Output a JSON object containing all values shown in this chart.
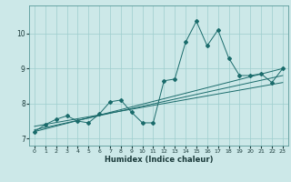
{
  "xlabel": "Humidex (Indice chaleur)",
  "xlim": [
    -0.5,
    23.5
  ],
  "ylim": [
    6.8,
    10.8
  ],
  "yticks": [
    7,
    8,
    9,
    10
  ],
  "xticks": [
    0,
    1,
    2,
    3,
    4,
    5,
    6,
    7,
    8,
    9,
    10,
    11,
    12,
    13,
    14,
    15,
    16,
    17,
    18,
    19,
    20,
    21,
    22,
    23
  ],
  "background_color": "#cce8e8",
  "grid_color": "#9ecece",
  "line_color": "#1a6b6b",
  "main_x": [
    0,
    1,
    2,
    3,
    4,
    5,
    6,
    7,
    8,
    9,
    10,
    11,
    12,
    13,
    14,
    15,
    16,
    17,
    18,
    19,
    20,
    21,
    22,
    23
  ],
  "main_y": [
    7.2,
    7.4,
    7.55,
    7.65,
    7.5,
    7.45,
    7.7,
    8.05,
    8.1,
    7.75,
    7.45,
    7.45,
    8.65,
    8.7,
    9.75,
    10.35,
    9.65,
    10.1,
    9.3,
    8.8,
    8.8,
    8.85,
    8.6,
    9.0
  ],
  "trend1_x": [
    0,
    23
  ],
  "trend1_y": [
    7.2,
    9.0
  ],
  "trend2_x": [
    0,
    23
  ],
  "trend2_y": [
    7.25,
    8.8
  ],
  "trend3_x": [
    0,
    23
  ],
  "trend3_y": [
    7.35,
    8.6
  ]
}
